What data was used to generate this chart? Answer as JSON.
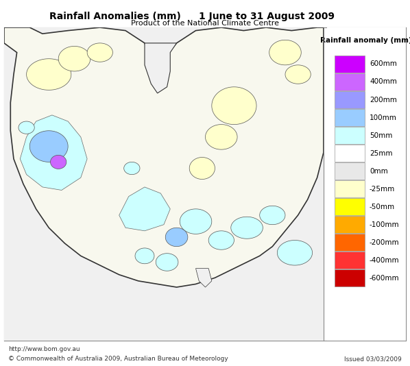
{
  "title_left": "Rainfall Anomalies (mm)",
  "title_right": "1 June to 31 August 2009",
  "subtitle": "Product of the National Climate Centre",
  "footer_left": "http://www.bom.gov.au",
  "footer_copyright": "© Commonwealth of Australia 2009, Australian Bureau of Meteorology",
  "footer_issued": "Issued 03/03/2009",
  "legend_title": "Rainfall anomaly (mm)",
  "legend_labels": [
    "600mm",
    "400mm",
    "200mm",
    "100mm",
    "50mm",
    "25mm",
    "0mm",
    "-25mm",
    "-50mm",
    "-100mm",
    "-200mm",
    "-400mm",
    "-600mm"
  ],
  "legend_colors": [
    "#CC00FF",
    "#CC66FF",
    "#9999FF",
    "#99CCFF",
    "#CCFFFF",
    "#FFFFFF",
    "#E8E8E8",
    "#FFFFCC",
    "#FFFF00",
    "#FFAA00",
    "#FF6600",
    "#FF3333",
    "#CC0000"
  ],
  "background_color": "#FFFFFF",
  "box_border_color": "#888888",
  "title_fontsize": 10,
  "subtitle_fontsize": 8,
  "legend_fontsize": 7.5
}
